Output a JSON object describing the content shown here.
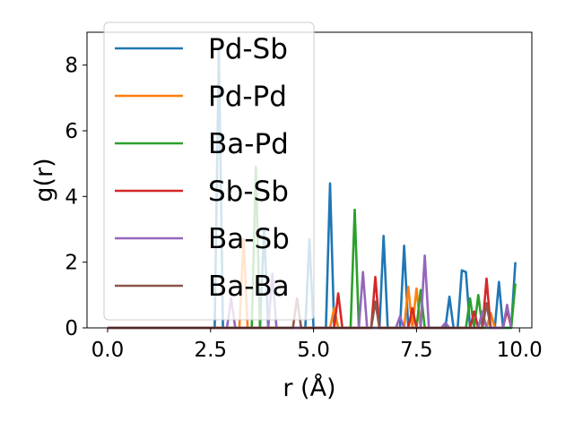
{
  "chart_data": {
    "type": "line",
    "xlabel": "r (Å)",
    "ylabel": "g(r)",
    "xlim": [
      -0.5,
      10.3
    ],
    "ylim": [
      0,
      9.0
    ],
    "x_ticks": [
      "0.0",
      "2.5",
      "5.0",
      "7.5",
      "10.0"
    ],
    "y_ticks": [
      "0",
      "2",
      "4",
      "6",
      "8"
    ],
    "legend_position": "upper-left",
    "grid": false,
    "series": [
      {
        "name": "Pd-Sb",
        "color": "#1f77b4",
        "points": [
          [
            0,
            0
          ],
          [
            2.6,
            0
          ],
          [
            2.7,
            8.5
          ],
          [
            2.8,
            0
          ],
          [
            3.7,
            0
          ],
          [
            3.8,
            3.0
          ],
          [
            3.9,
            0
          ],
          [
            4.8,
            0
          ],
          [
            4.9,
            2.7
          ],
          [
            5.0,
            0
          ],
          [
            5.3,
            0
          ],
          [
            5.4,
            4.4
          ],
          [
            5.5,
            0
          ],
          [
            6.6,
            0
          ],
          [
            6.7,
            2.8
          ],
          [
            6.8,
            0
          ],
          [
            7.1,
            0
          ],
          [
            7.2,
            2.5
          ],
          [
            7.3,
            0
          ],
          [
            8.2,
            0
          ],
          [
            8.3,
            0.95
          ],
          [
            8.4,
            0
          ],
          [
            8.5,
            0
          ],
          [
            8.6,
            1.75
          ],
          [
            8.7,
            1.7
          ],
          [
            8.8,
            0
          ],
          [
            9.4,
            0
          ],
          [
            9.5,
            1.4
          ],
          [
            9.6,
            0
          ],
          [
            9.8,
            0
          ],
          [
            9.9,
            2.0
          ]
        ]
      },
      {
        "name": "Pd-Pd",
        "color": "#ff7f0e",
        "points": [
          [
            0,
            0
          ],
          [
            3.2,
            0
          ],
          [
            3.3,
            2.7
          ],
          [
            3.4,
            0
          ],
          [
            5.4,
            0
          ],
          [
            5.5,
            0.6
          ],
          [
            5.6,
            0
          ],
          [
            7.2,
            0
          ],
          [
            7.3,
            1.25
          ],
          [
            7.4,
            0
          ],
          [
            7.5,
            1.2
          ],
          [
            7.6,
            0
          ],
          [
            9.2,
            0
          ],
          [
            9.3,
            0.45
          ],
          [
            9.4,
            0
          ]
        ]
      },
      {
        "name": "Ba-Pd",
        "color": "#2ca02c",
        "points": [
          [
            0,
            0
          ],
          [
            3.5,
            0
          ],
          [
            3.6,
            4.9
          ],
          [
            3.7,
            0
          ],
          [
            5.9,
            0
          ],
          [
            6.0,
            3.6
          ],
          [
            6.1,
            0
          ],
          [
            7.5,
            0
          ],
          [
            7.6,
            1.15
          ],
          [
            7.7,
            0
          ],
          [
            8.7,
            0
          ],
          [
            8.8,
            0.9
          ],
          [
            8.9,
            0
          ],
          [
            9.0,
            1.0
          ],
          [
            9.1,
            0
          ],
          [
            9.8,
            0
          ],
          [
            9.9,
            1.35
          ]
        ]
      },
      {
        "name": "Sb-Sb",
        "color": "#d62728",
        "points": [
          [
            0,
            0
          ],
          [
            5.5,
            0
          ],
          [
            5.6,
            1.05
          ],
          [
            5.7,
            0
          ],
          [
            6.4,
            0
          ],
          [
            6.5,
            1.55
          ],
          [
            6.6,
            0
          ],
          [
            7.3,
            0
          ],
          [
            7.4,
            0.6
          ],
          [
            7.5,
            0
          ],
          [
            8.8,
            0
          ],
          [
            8.9,
            0.5
          ],
          [
            9.0,
            0
          ],
          [
            9.1,
            0
          ],
          [
            9.2,
            1.5
          ],
          [
            9.3,
            0
          ],
          [
            9.6,
            0
          ],
          [
            9.7,
            0.55
          ],
          [
            9.8,
            0
          ]
        ]
      },
      {
        "name": "Ba-Sb",
        "color": "#9467bd",
        "points": [
          [
            0,
            0
          ],
          [
            2.9,
            0
          ],
          [
            3.0,
            0.9
          ],
          [
            3.1,
            0
          ],
          [
            3.9,
            0
          ],
          [
            4.0,
            1.65
          ],
          [
            4.1,
            0
          ],
          [
            6.1,
            0
          ],
          [
            6.2,
            1.7
          ],
          [
            6.3,
            0
          ],
          [
            7.0,
            0
          ],
          [
            7.1,
            0.35
          ],
          [
            7.2,
            0
          ],
          [
            7.6,
            0
          ],
          [
            7.7,
            2.2
          ],
          [
            7.8,
            0
          ],
          [
            8.1,
            0
          ],
          [
            8.2,
            0.15
          ],
          [
            8.3,
            0
          ],
          [
            9.0,
            0
          ],
          [
            9.1,
            0.5
          ],
          [
            9.2,
            0
          ],
          [
            9.6,
            0
          ],
          [
            9.7,
            0.7
          ],
          [
            9.8,
            0
          ]
        ]
      },
      {
        "name": "Ba-Ba",
        "color": "#8c564b",
        "points": [
          [
            0,
            0
          ],
          [
            4.5,
            0
          ],
          [
            4.6,
            0.9
          ],
          [
            4.7,
            0
          ],
          [
            6.4,
            0
          ],
          [
            6.5,
            0.8
          ],
          [
            6.6,
            0
          ],
          [
            9.1,
            0
          ],
          [
            9.2,
            0.75
          ],
          [
            9.3,
            0
          ]
        ]
      }
    ]
  }
}
